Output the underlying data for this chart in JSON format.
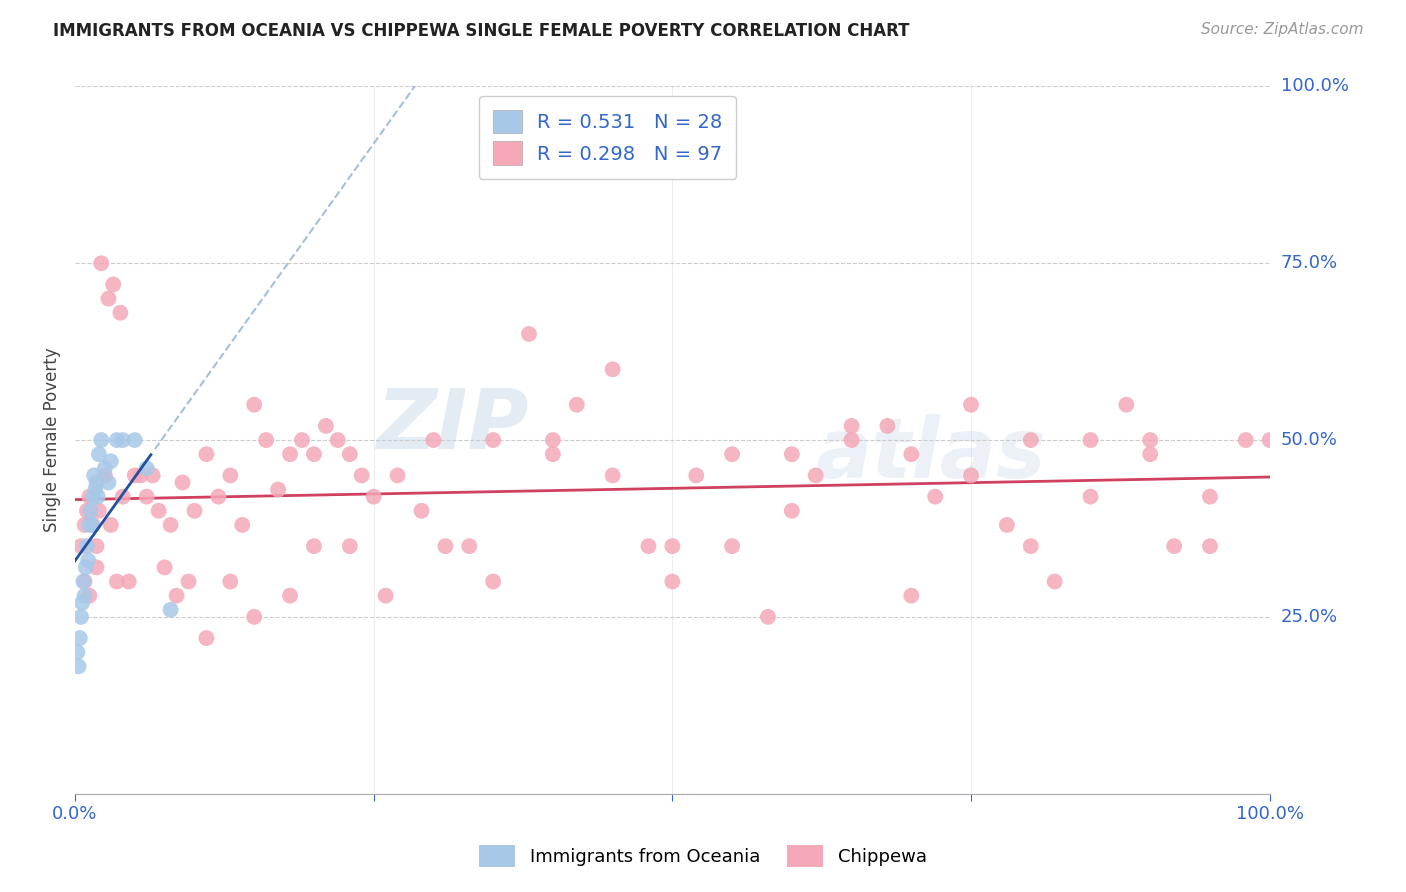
{
  "title": "IMMIGRANTS FROM OCEANIA VS CHIPPEWA SINGLE FEMALE POVERTY CORRELATION CHART",
  "source": "Source: ZipAtlas.com",
  "ylabel": "Single Female Poverty",
  "ytick_labels": [
    "25.0%",
    "50.0%",
    "75.0%",
    "100.0%"
  ],
  "ytick_values": [
    0.25,
    0.5,
    0.75,
    1.0
  ],
  "legend_R1": "R = 0.531",
  "legend_N1": "N = 28",
  "legend_R2": "R = 0.298",
  "legend_N2": "N = 97",
  "blue_color": "#a8c8e8",
  "pink_color": "#f4a8b8",
  "blue_line_color": "#2050a0",
  "pink_line_color": "#d04060",
  "blue_dash_color": "#90b0d0",
  "watermark_zip": "ZIP",
  "watermark_atlas": "atlas",
  "blue_x": [
    0.002,
    0.003,
    0.004,
    0.005,
    0.006,
    0.007,
    0.008,
    0.009,
    0.01,
    0.011,
    0.012,
    0.013,
    0.014,
    0.015,
    0.016,
    0.017,
    0.018,
    0.019,
    0.02,
    0.022,
    0.025,
    0.028,
    0.03,
    0.035,
    0.04,
    0.05,
    0.06,
    0.08
  ],
  "blue_y": [
    0.2,
    0.18,
    0.22,
    0.25,
    0.27,
    0.3,
    0.28,
    0.32,
    0.35,
    0.33,
    0.38,
    0.4,
    0.38,
    0.42,
    0.45,
    0.43,
    0.44,
    0.42,
    0.48,
    0.5,
    0.46,
    0.44,
    0.47,
    0.5,
    0.5,
    0.5,
    0.46,
    0.26
  ],
  "pink_x": [
    0.005,
    0.008,
    0.01,
    0.012,
    0.015,
    0.018,
    0.02,
    0.025,
    0.03,
    0.035,
    0.04,
    0.05,
    0.06,
    0.07,
    0.08,
    0.09,
    0.1,
    0.11,
    0.12,
    0.13,
    0.14,
    0.15,
    0.16,
    0.17,
    0.18,
    0.19,
    0.2,
    0.21,
    0.22,
    0.23,
    0.24,
    0.25,
    0.27,
    0.29,
    0.31,
    0.33,
    0.35,
    0.38,
    0.4,
    0.42,
    0.45,
    0.48,
    0.5,
    0.52,
    0.55,
    0.58,
    0.6,
    0.62,
    0.65,
    0.68,
    0.7,
    0.72,
    0.75,
    0.78,
    0.8,
    0.82,
    0.85,
    0.88,
    0.9,
    0.92,
    0.95,
    0.98,
    1.0,
    0.008,
    0.012,
    0.018,
    0.022,
    0.028,
    0.032,
    0.038,
    0.045,
    0.055,
    0.065,
    0.075,
    0.085,
    0.095,
    0.11,
    0.13,
    0.15,
    0.18,
    0.2,
    0.23,
    0.26,
    0.3,
    0.35,
    0.4,
    0.45,
    0.5,
    0.55,
    0.6,
    0.65,
    0.7,
    0.75,
    0.8,
    0.85,
    0.9,
    0.95
  ],
  "pink_y": [
    0.35,
    0.38,
    0.4,
    0.42,
    0.38,
    0.35,
    0.4,
    0.45,
    0.38,
    0.3,
    0.42,
    0.45,
    0.42,
    0.4,
    0.38,
    0.44,
    0.4,
    0.48,
    0.42,
    0.45,
    0.38,
    0.55,
    0.5,
    0.43,
    0.48,
    0.5,
    0.48,
    0.52,
    0.5,
    0.48,
    0.45,
    0.42,
    0.45,
    0.4,
    0.35,
    0.35,
    0.3,
    0.65,
    0.5,
    0.55,
    0.6,
    0.35,
    0.3,
    0.45,
    0.35,
    0.25,
    0.4,
    0.45,
    0.5,
    0.52,
    0.48,
    0.42,
    0.55,
    0.38,
    0.35,
    0.3,
    0.5,
    0.55,
    0.48,
    0.35,
    0.35,
    0.5,
    0.5,
    0.3,
    0.28,
    0.32,
    0.75,
    0.7,
    0.72,
    0.68,
    0.3,
    0.45,
    0.45,
    0.32,
    0.28,
    0.3,
    0.22,
    0.3,
    0.25,
    0.28,
    0.35,
    0.35,
    0.28,
    0.5,
    0.5,
    0.48,
    0.45,
    0.35,
    0.48,
    0.48,
    0.52,
    0.28,
    0.45,
    0.5,
    0.42,
    0.5,
    0.42
  ]
}
